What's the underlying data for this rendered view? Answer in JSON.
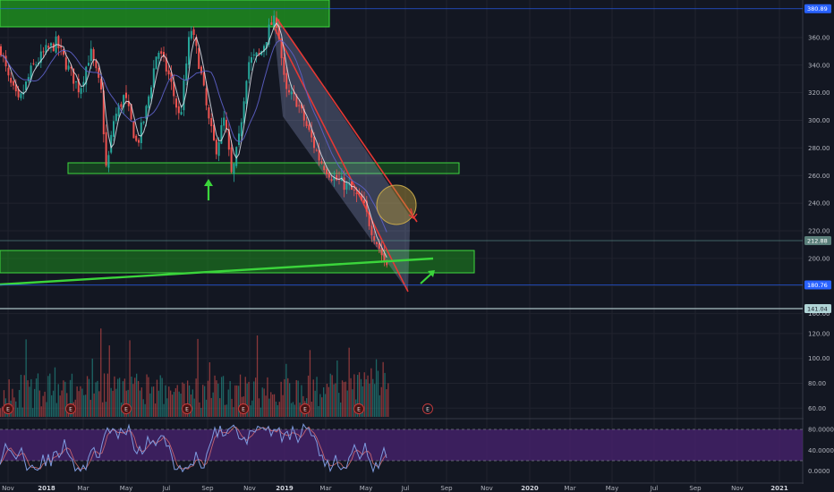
{
  "chart_data": {
    "type": "candlestick",
    "price_axis": {
      "ylim": [
        150,
        382
      ],
      "ticks": [
        "360.00",
        "340.00",
        "320.00",
        "300.00",
        "280.00",
        "260.00",
        "240.00",
        "220.00",
        "200.00",
        "180.00",
        "160.00"
      ]
    },
    "volume_axis": {
      "ylim": [
        53,
        130
      ],
      "ticks": [
        "120.00",
        "100.00",
        "80.00",
        "60.00"
      ]
    },
    "oscillator_axis": {
      "ylim": [
        -4,
        92
      ],
      "ticks": [
        "80.0000",
        "40.0000",
        "0.0000"
      ],
      "bands": [
        20,
        80
      ]
    },
    "time_axis": {
      "labels": [
        {
          "t": "Nov",
          "year": false
        },
        {
          "t": "2018",
          "year": true
        },
        {
          "t": "Mar",
          "year": false
        },
        {
          "t": "May",
          "year": false
        },
        {
          "t": "Jul",
          "year": false
        },
        {
          "t": "Sep",
          "year": false
        },
        {
          "t": "Nov",
          "year": false
        },
        {
          "t": "2019",
          "year": true
        },
        {
          "t": "Mar",
          "year": false
        },
        {
          "t": "May",
          "year": false
        },
        {
          "t": "Jul",
          "year": false
        },
        {
          "t": "Sep",
          "year": false
        },
        {
          "t": "Nov",
          "year": false
        },
        {
          "t": "2020",
          "year": true
        },
        {
          "t": "Mar",
          "year": false
        },
        {
          "t": "May",
          "year": false
        },
        {
          "t": "Jul",
          "year": false
        },
        {
          "t": "Sep",
          "year": false
        },
        {
          "t": "Nov",
          "year": false
        },
        {
          "t": "2021",
          "year": true
        }
      ]
    },
    "price_tags": [
      {
        "value": "380.89",
        "color": "#2962ff",
        "text_color": "#ffffff"
      },
      {
        "value": "212.88",
        "color": "#5a7f7a",
        "text_color": "#ffffff"
      },
      {
        "value": "180.76",
        "color": "#2962ff",
        "text_color": "#ffffff"
      },
      {
        "value": "141.04",
        "color": "#b0d4d6",
        "text_color": "#131722"
      }
    ],
    "earnings_marker": "E",
    "colors": {
      "up": "#26a69a",
      "down": "#ef5350",
      "ma": "#5d60c8",
      "zone": "#1e8c1e",
      "channel": "#e53935",
      "trendline": "#3bd53b",
      "oscillator_band": "#4a2372"
    },
    "grid": true
  }
}
